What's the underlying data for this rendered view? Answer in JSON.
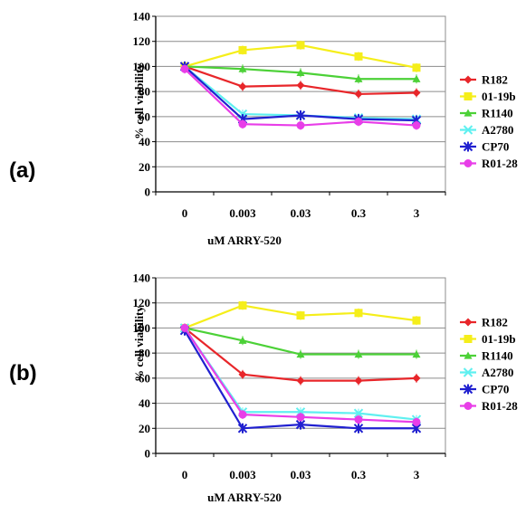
{
  "chart_data": [
    {
      "type": "line",
      "panel_label": "(a)",
      "categories": [
        "0",
        "0.003",
        "0.03",
        "0.3",
        "3"
      ],
      "xlabel": "uM ARRY-520",
      "ylabel": "% cell viability",
      "ylim": [
        0,
        140
      ],
      "yticks": [
        "0",
        "20",
        "40",
        "60",
        "80",
        "100",
        "120",
        "140"
      ],
      "grid": true,
      "legend_position": "right",
      "series": [
        {
          "name": "R182",
          "color": "#e8262a",
          "marker": "diamond",
          "values": [
            100,
            84,
            85,
            78,
            79
          ]
        },
        {
          "name": "01-19b",
          "color": "#f5ee1a",
          "marker": "square",
          "values": [
            100,
            113,
            117,
            108,
            99
          ]
        },
        {
          "name": "R1140",
          "color": "#4cd137",
          "marker": "triangle",
          "values": [
            100,
            98,
            95,
            90,
            90
          ]
        },
        {
          "name": "A2780",
          "color": "#5ff0f0",
          "marker": "x",
          "values": [
            100,
            62,
            61,
            59,
            58
          ]
        },
        {
          "name": "CP70",
          "color": "#2020d0",
          "marker": "star",
          "values": [
            100,
            58,
            61,
            58,
            57
          ]
        },
        {
          "name": "R01-28",
          "color": "#e83ee8",
          "marker": "circle",
          "values": [
            98,
            54,
            53,
            56,
            53
          ]
        }
      ]
    },
    {
      "type": "line",
      "panel_label": "(b)",
      "categories": [
        "0",
        "0.003",
        "0.03",
        "0.3",
        "3"
      ],
      "xlabel": "uM ARRY-520",
      "ylabel": "% cell viability",
      "ylim": [
        0,
        140
      ],
      "yticks": [
        "0",
        "20",
        "40",
        "60",
        "80",
        "100",
        "120",
        "140"
      ],
      "grid": true,
      "legend_position": "right",
      "series": [
        {
          "name": "R182",
          "color": "#e8262a",
          "marker": "diamond",
          "values": [
            100,
            63,
            58,
            58,
            60
          ]
        },
        {
          "name": "01-19b",
          "color": "#f5ee1a",
          "marker": "square",
          "values": [
            100,
            118,
            110,
            112,
            106
          ]
        },
        {
          "name": "R1140",
          "color": "#4cd137",
          "marker": "triangle",
          "values": [
            100,
            90,
            79,
            79,
            79
          ]
        },
        {
          "name": "A2780",
          "color": "#5ff0f0",
          "marker": "x",
          "values": [
            100,
            33,
            33,
            32,
            27
          ]
        },
        {
          "name": "CP70",
          "color": "#2020d0",
          "marker": "star",
          "values": [
            98,
            20,
            23,
            20,
            20
          ]
        },
        {
          "name": "R01-28",
          "color": "#e83ee8",
          "marker": "circle",
          "values": [
            100,
            31,
            29,
            27,
            25
          ]
        }
      ]
    }
  ]
}
